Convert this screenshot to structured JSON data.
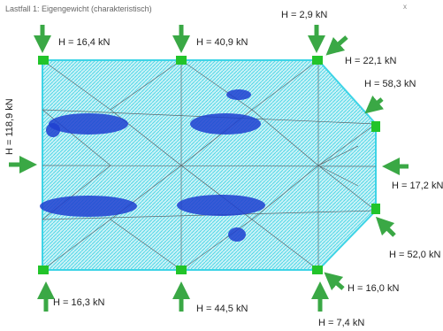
{
  "header": {
    "title": "Lastfall 1: Eigengewicht (charakteristisch)",
    "close": "x"
  },
  "reactions": [
    {
      "label": "H = 16,4 kN"
    },
    {
      "label": "H = 40,9 kN"
    },
    {
      "label": "H = 2,9 kN"
    },
    {
      "label": "H = 22,1 kN"
    },
    {
      "label": "H = 58,3 kN"
    },
    {
      "label": "H = 118,9 kN"
    },
    {
      "label": "H = 17,2 kN"
    },
    {
      "label": "H = 52,0 kN"
    },
    {
      "label": "H = 16,0 kN"
    },
    {
      "label": "H = 7,4 kN"
    },
    {
      "label": "H = 44,5 kN"
    },
    {
      "label": "H = 16,3 kN"
    }
  ]
}
